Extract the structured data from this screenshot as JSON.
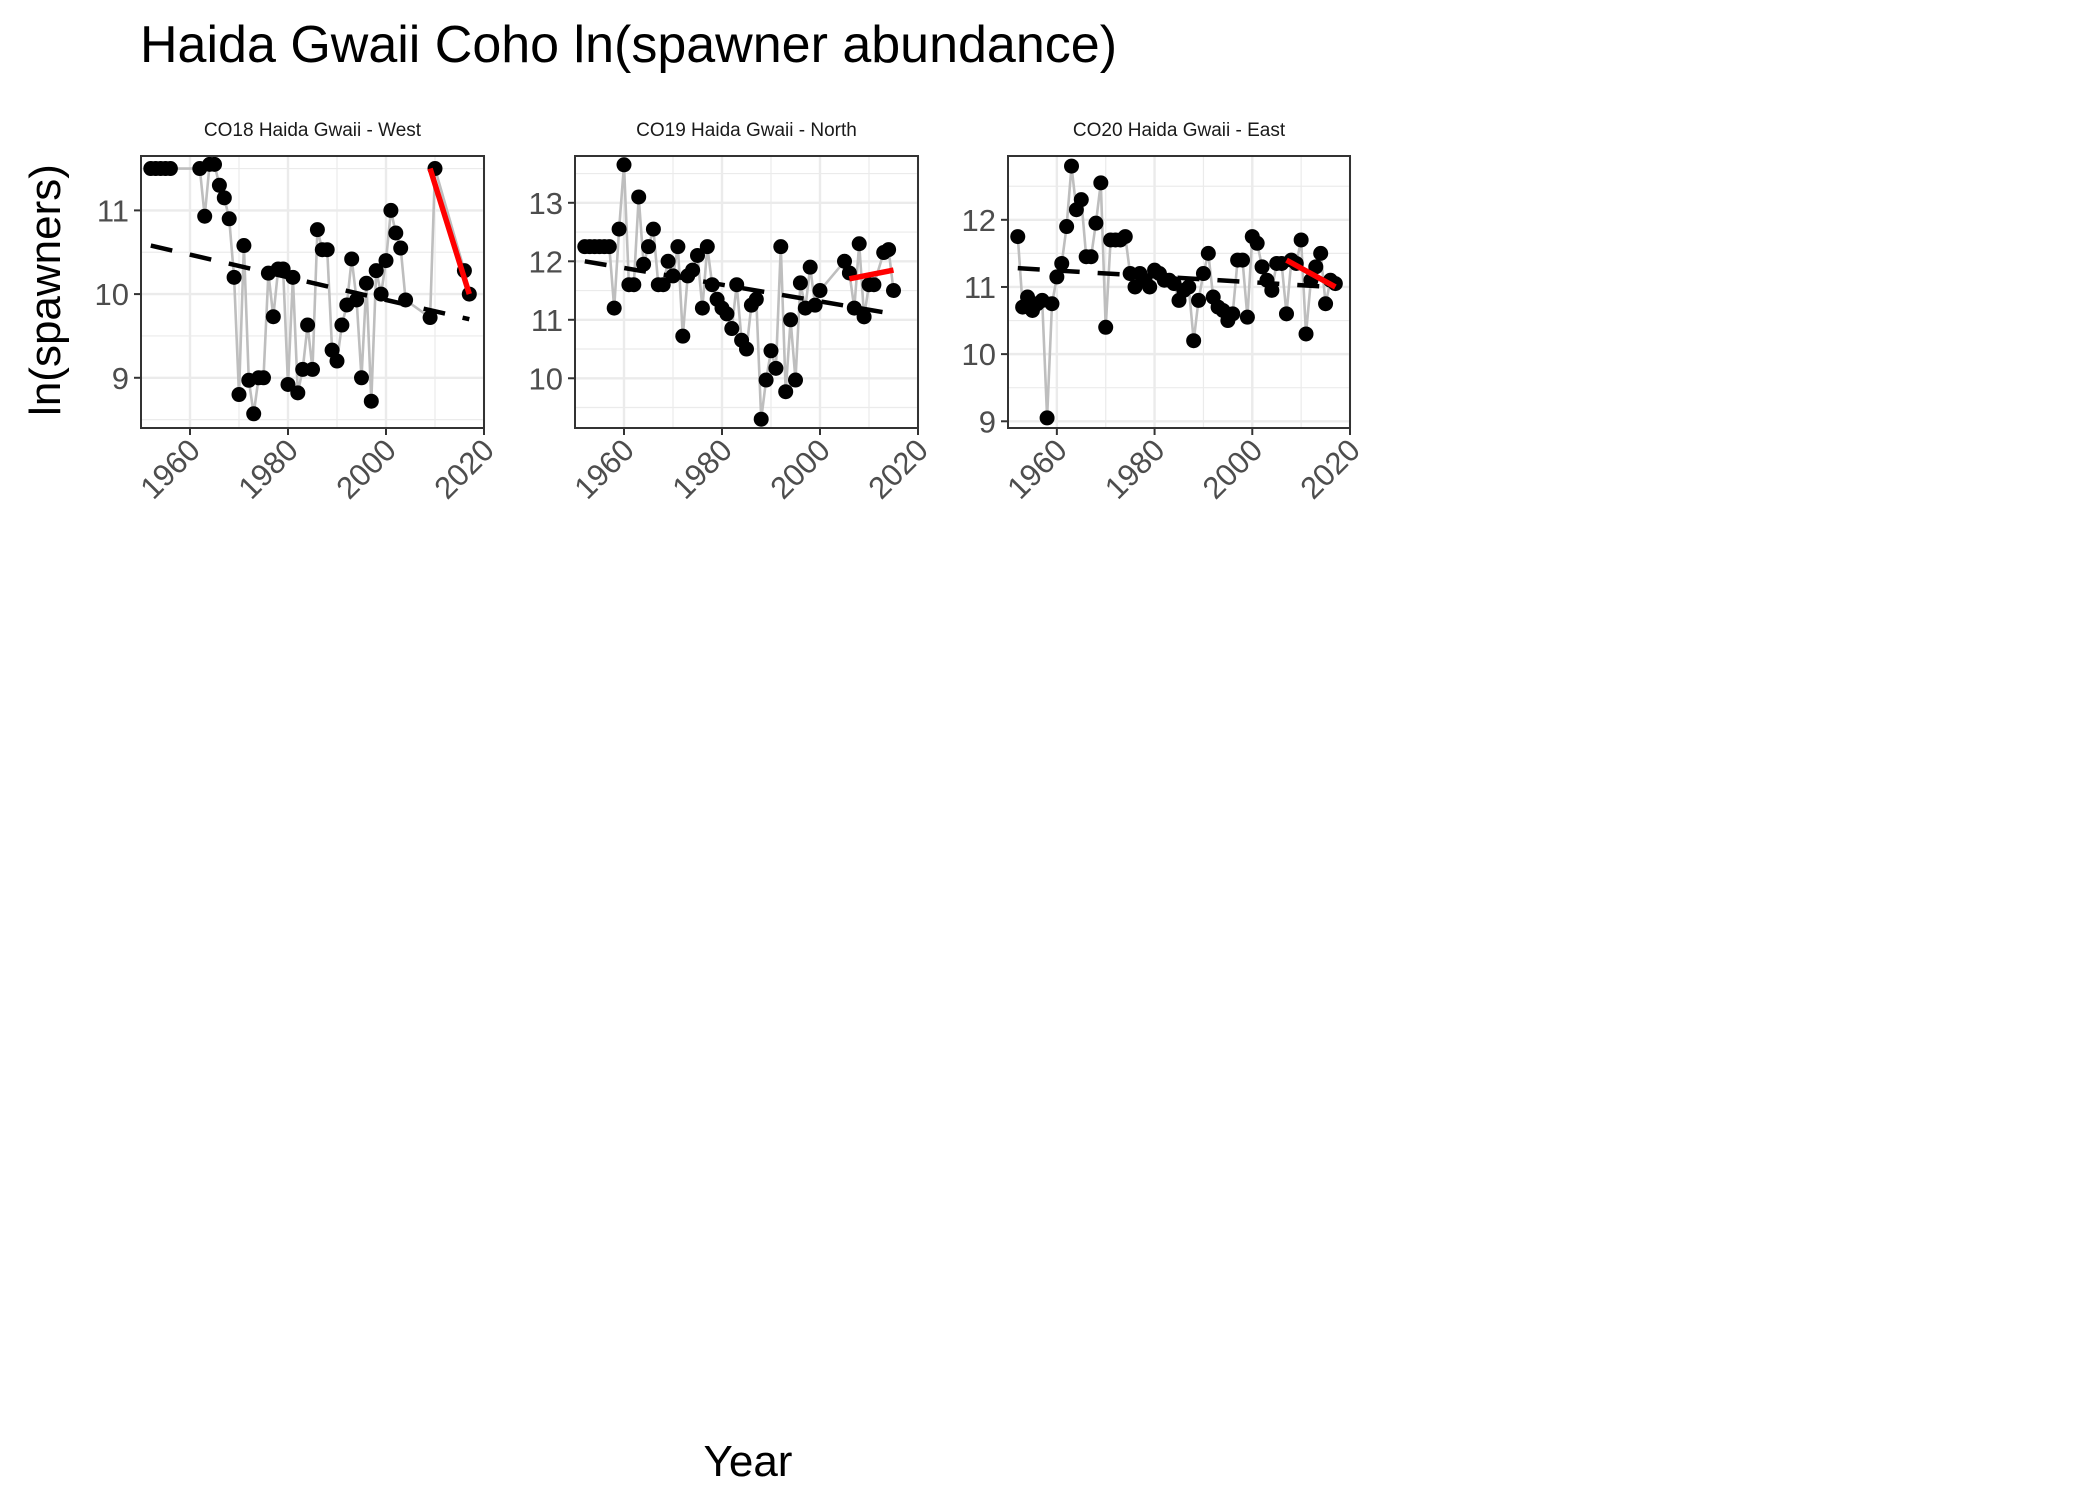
{
  "chart_data": {
    "type": "scatter",
    "title": "Haida Gwaii Coho ln(spawner abundance)",
    "xlabel": "Year",
    "ylabel": "ln(spawners)",
    "grid": true,
    "colors": {
      "points": "#000000",
      "line": "#bebebe",
      "trend": "#000000",
      "recent_trend": "#ff0000",
      "grid": "#ebebeb"
    },
    "panels": [
      {
        "strip": "CO18 Haida Gwaii - West",
        "xlim": [
          1950,
          2020
        ],
        "ylim": [
          8.4,
          11.65
        ],
        "xticks": [
          1960,
          1980,
          2000,
          2020
        ],
        "yticks": [
          9,
          10,
          11
        ],
        "x": [
          1952,
          1953,
          1954,
          1955,
          1956,
          1962,
          1963,
          1964,
          1965,
          1966,
          1967,
          1968,
          1969,
          1970,
          1971,
          1972,
          1973,
          1974,
          1975,
          1976,
          1977,
          1978,
          1979,
          1980,
          1981,
          1982,
          1983,
          1984,
          1985,
          1986,
          1987,
          1988,
          1989,
          1990,
          1991,
          1992,
          1993,
          1994,
          1995,
          1996,
          1997,
          1998,
          1999,
          2000,
          2001,
          2002,
          2003,
          2004,
          2009,
          2010,
          2016,
          2017
        ],
        "y": [
          11.5,
          11.5,
          11.5,
          11.5,
          11.5,
          11.5,
          10.93,
          11.55,
          11.55,
          11.3,
          11.15,
          10.9,
          10.2,
          8.8,
          10.58,
          8.97,
          8.57,
          9.0,
          9.0,
          10.25,
          9.73,
          10.3,
          10.3,
          8.92,
          10.2,
          8.82,
          9.1,
          9.63,
          9.1,
          10.77,
          10.53,
          10.53,
          9.33,
          9.2,
          9.63,
          9.87,
          10.42,
          9.93,
          9.0,
          10.13,
          8.72,
          10.28,
          10.0,
          10.4,
          11.0,
          10.73,
          10.55,
          9.93,
          9.72,
          11.5,
          10.28,
          10.0
        ],
        "trend": {
          "x": [
            1952,
            2017
          ],
          "y": [
            10.58,
            9.7
          ]
        },
        "recent_trend": {
          "x": [
            2009,
            2017
          ],
          "y": [
            11.5,
            10.0
          ]
        }
      },
      {
        "strip": "CO19 Haida Gwaii - North",
        "xlim": [
          1950,
          2020
        ],
        "ylim": [
          9.15,
          13.8
        ],
        "xticks": [
          1960,
          1980,
          2000,
          2020
        ],
        "yticks": [
          10,
          11,
          12,
          13
        ],
        "x": [
          1952,
          1953,
          1954,
          1955,
          1956,
          1957,
          1958,
          1959,
          1960,
          1961,
          1962,
          1963,
          1964,
          1965,
          1966,
          1967,
          1968,
          1969,
          1970,
          1971,
          1972,
          1973,
          1974,
          1975,
          1976,
          1977,
          1978,
          1979,
          1980,
          1981,
          1982,
          1983,
          1984,
          1985,
          1986,
          1987,
          1988,
          1989,
          1990,
          1991,
          1992,
          1993,
          1994,
          1995,
          1996,
          1997,
          1998,
          1999,
          2000,
          2005,
          2006,
          2007,
          2008,
          2009,
          2010,
          2011,
          2013,
          2014,
          2015
        ],
        "y": [
          12.25,
          12.25,
          12.25,
          12.25,
          12.25,
          12.25,
          11.2,
          12.55,
          13.65,
          11.6,
          11.6,
          13.1,
          11.95,
          12.25,
          12.55,
          11.6,
          11.6,
          12.0,
          11.75,
          12.25,
          10.72,
          11.75,
          11.85,
          12.1,
          11.2,
          12.25,
          11.6,
          11.35,
          11.2,
          11.1,
          10.85,
          11.6,
          10.65,
          10.5,
          11.25,
          11.35,
          9.3,
          9.97,
          10.47,
          10.17,
          12.25,
          9.77,
          11.0,
          9.97,
          11.63,
          11.2,
          11.9,
          11.25,
          11.5,
          12.0,
          11.8,
          11.2,
          12.3,
          11.05,
          11.6,
          11.6,
          12.15,
          12.2,
          11.5
        ],
        "trend": {
          "x": [
            1952,
            2015
          ],
          "y": [
            12.0,
            11.1
          ]
        },
        "recent_trend": {
          "x": [
            2006,
            2015
          ],
          "y": [
            11.7,
            11.85
          ]
        }
      },
      {
        "strip": "CO20 Haida Gwaii - East",
        "xlim": [
          1950,
          2020
        ],
        "ylim": [
          8.9,
          12.95
        ],
        "xticks": [
          1960,
          1980,
          2000,
          2020
        ],
        "yticks": [
          9,
          10,
          11,
          12
        ],
        "x": [
          1952,
          1953,
          1954,
          1955,
          1956,
          1957,
          1958,
          1959,
          1960,
          1961,
          1962,
          1963,
          1964,
          1965,
          1966,
          1967,
          1968,
          1969,
          1970,
          1971,
          1972,
          1973,
          1974,
          1975,
          1976,
          1977,
          1978,
          1979,
          1980,
          1981,
          1982,
          1983,
          1984,
          1985,
          1986,
          1987,
          1988,
          1989,
          1990,
          1991,
          1992,
          1993,
          1994,
          1995,
          1996,
          1997,
          1998,
          1999,
          2000,
          2001,
          2002,
          2003,
          2004,
          2005,
          2006,
          2007,
          2008,
          2009,
          2010,
          2011,
          2012,
          2013,
          2014,
          2015,
          2016,
          2017
        ],
        "y": [
          11.75,
          10.7,
          10.85,
          10.65,
          10.75,
          10.8,
          9.05,
          10.75,
          11.15,
          11.35,
          11.9,
          12.8,
          12.15,
          12.3,
          11.45,
          11.45,
          11.95,
          12.55,
          10.4,
          11.7,
          11.7,
          11.7,
          11.75,
          11.2,
          11.0,
          11.2,
          11.1,
          11.0,
          11.25,
          11.2,
          11.1,
          11.1,
          11.05,
          10.8,
          10.95,
          11.0,
          10.2,
          10.8,
          11.2,
          11.5,
          10.85,
          10.7,
          10.65,
          10.5,
          10.6,
          11.4,
          11.4,
          10.55,
          11.75,
          11.65,
          11.3,
          11.1,
          10.95,
          11.35,
          11.35,
          10.6,
          11.4,
          11.35,
          11.7,
          10.3,
          11.1,
          11.3,
          11.5,
          10.75,
          11.1,
          11.05
        ],
        "trend": {
          "x": [
            1952,
            2016
          ],
          "y": [
            11.28,
            11.0
          ]
        },
        "recent_trend": {
          "x": [
            2007,
            2017
          ],
          "y": [
            11.4,
            11.0
          ]
        }
      }
    ]
  }
}
